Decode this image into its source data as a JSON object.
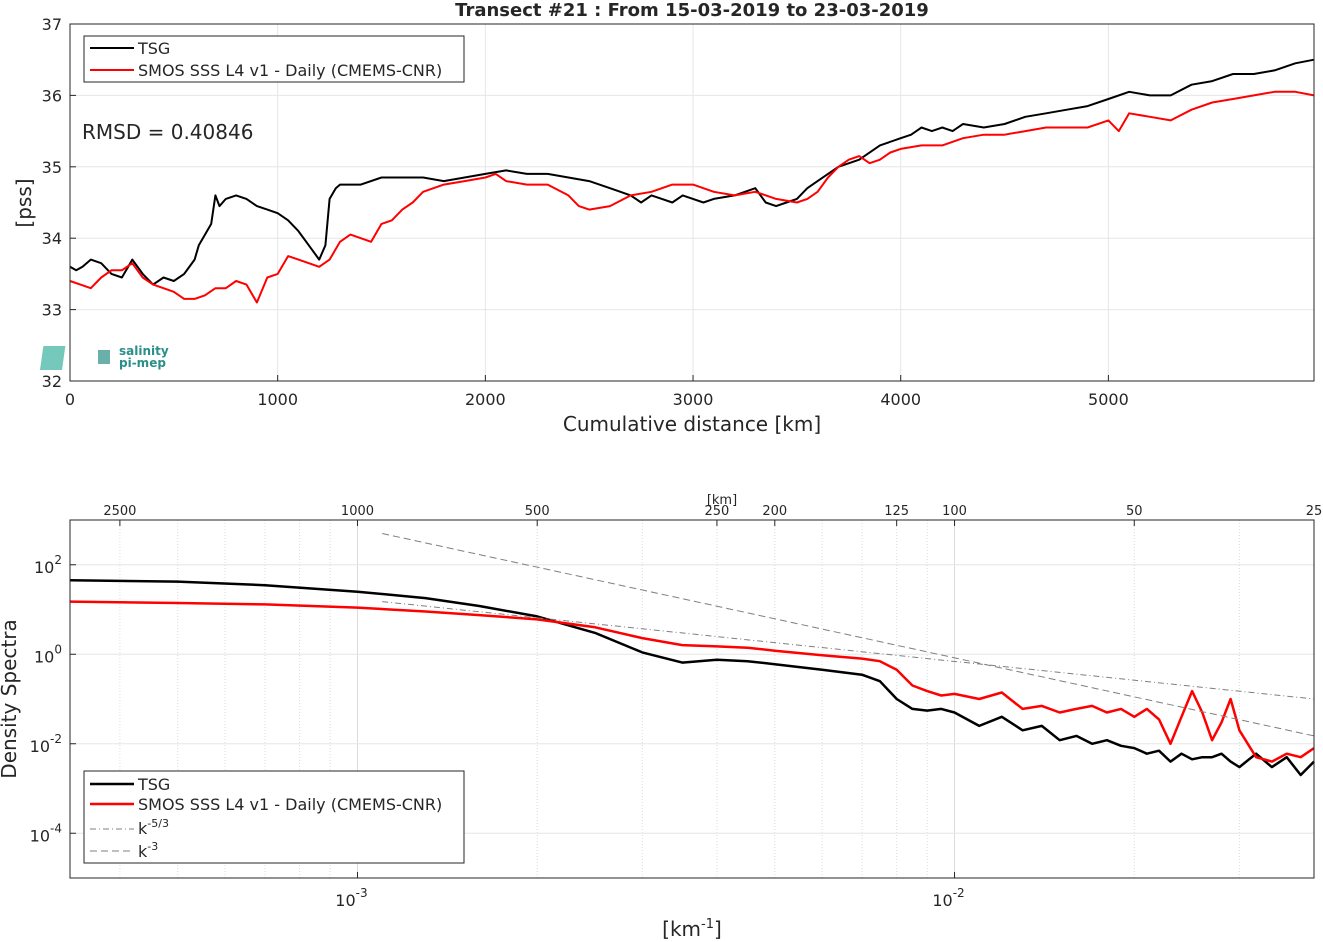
{
  "figure": {
    "title": "Transect #21 : From 15-03-2019 to 23-03-2019",
    "logo_text": [
      "salinity",
      "pi-mep"
    ]
  },
  "chart_data": [
    {
      "type": "line",
      "title": "Transect #21 : From 15-03-2019 to 23-03-2019",
      "xlabel": "Cumulative distance [km]",
      "ylabel": "[pss]",
      "xlim": [
        0,
        5990
      ],
      "ylim": [
        32,
        37
      ],
      "xticks": [
        0,
        1000,
        2000,
        3000,
        4000,
        5000
      ],
      "yticks": [
        32,
        33,
        34,
        35,
        36,
        37
      ],
      "grid": true,
      "legend_position": "top-left",
      "annotation": "RMSD = 0.40846",
      "series": [
        {
          "name": "TSG",
          "color": "#000000",
          "x": [
            0,
            30,
            60,
            100,
            150,
            200,
            250,
            300,
            350,
            400,
            450,
            500,
            550,
            600,
            620,
            650,
            680,
            700,
            720,
            750,
            800,
            850,
            900,
            950,
            1000,
            1050,
            1100,
            1150,
            1200,
            1230,
            1250,
            1280,
            1300,
            1400,
            1500,
            1600,
            1700,
            1800,
            1900,
            2000,
            2100,
            2200,
            2300,
            2400,
            2500,
            2600,
            2650,
            2700,
            2750,
            2800,
            2850,
            2900,
            2950,
            3000,
            3050,
            3100,
            3200,
            3300,
            3350,
            3400,
            3450,
            3500,
            3550,
            3600,
            3650,
            3700,
            3800,
            3900,
            4000,
            4050,
            4100,
            4150,
            4200,
            4250,
            4300,
            4400,
            4500,
            4600,
            4700,
            4800,
            4900,
            5000,
            5100,
            5200,
            5300,
            5400,
            5500,
            5600,
            5700,
            5800,
            5900,
            5990
          ],
          "y": [
            33.6,
            33.55,
            33.6,
            33.7,
            33.65,
            33.5,
            33.45,
            33.7,
            33.5,
            33.35,
            33.45,
            33.4,
            33.5,
            33.7,
            33.9,
            34.05,
            34.2,
            34.6,
            34.45,
            34.55,
            34.6,
            34.55,
            34.45,
            34.4,
            34.35,
            34.25,
            34.1,
            33.9,
            33.7,
            33.9,
            34.55,
            34.7,
            34.75,
            34.75,
            34.85,
            34.85,
            34.85,
            34.8,
            34.85,
            34.9,
            34.95,
            34.9,
            34.9,
            34.85,
            34.8,
            34.7,
            34.65,
            34.6,
            34.5,
            34.6,
            34.55,
            34.5,
            34.6,
            34.55,
            34.5,
            34.55,
            34.6,
            34.7,
            34.5,
            34.45,
            34.5,
            34.55,
            34.7,
            34.8,
            34.9,
            35.0,
            35.1,
            35.3,
            35.4,
            35.45,
            35.55,
            35.5,
            35.55,
            35.5,
            35.6,
            35.55,
            35.6,
            35.7,
            35.75,
            35.8,
            35.85,
            35.95,
            36.05,
            36.0,
            36.0,
            36.15,
            36.2,
            36.3,
            36.3,
            36.35,
            36.45,
            36.5
          ]
        },
        {
          "name": "SMOS SSS L4 v1 - Daily (CMEMS-CNR)",
          "color": "#ff0000",
          "x": [
            0,
            50,
            100,
            150,
            200,
            250,
            300,
            350,
            400,
            450,
            500,
            550,
            600,
            650,
            700,
            750,
            800,
            850,
            900,
            950,
            1000,
            1050,
            1100,
            1150,
            1200,
            1250,
            1300,
            1350,
            1400,
            1450,
            1500,
            1550,
            1600,
            1650,
            1700,
            1800,
            1900,
            2000,
            2050,
            2100,
            2200,
            2300,
            2400,
            2450,
            2500,
            2600,
            2700,
            2800,
            2900,
            3000,
            3050,
            3100,
            3200,
            3300,
            3400,
            3500,
            3550,
            3600,
            3650,
            3700,
            3750,
            3800,
            3850,
            3900,
            3950,
            4000,
            4100,
            4200,
            4300,
            4400,
            4500,
            4600,
            4700,
            4800,
            4900,
            5000,
            5050,
            5100,
            5200,
            5300,
            5400,
            5500,
            5600,
            5700,
            5800,
            5900,
            5990
          ],
          "y": [
            33.4,
            33.35,
            33.3,
            33.45,
            33.55,
            33.55,
            33.65,
            33.45,
            33.35,
            33.3,
            33.25,
            33.15,
            33.15,
            33.2,
            33.3,
            33.3,
            33.4,
            33.35,
            33.1,
            33.45,
            33.5,
            33.75,
            33.7,
            33.65,
            33.6,
            33.7,
            33.95,
            34.05,
            34.0,
            33.95,
            34.2,
            34.25,
            34.4,
            34.5,
            34.65,
            34.75,
            34.8,
            34.85,
            34.9,
            34.8,
            34.75,
            34.75,
            34.6,
            34.45,
            34.4,
            34.45,
            34.6,
            34.65,
            34.75,
            34.75,
            34.7,
            34.65,
            34.6,
            34.65,
            34.55,
            34.5,
            34.55,
            34.65,
            34.85,
            35.0,
            35.1,
            35.15,
            35.05,
            35.1,
            35.2,
            35.25,
            35.3,
            35.3,
            35.4,
            35.45,
            35.45,
            35.5,
            35.55,
            35.55,
            35.55,
            35.65,
            35.5,
            35.75,
            35.7,
            35.65,
            35.8,
            35.9,
            35.95,
            36.0,
            36.05,
            36.05,
            36.0
          ]
        }
      ]
    },
    {
      "type": "line",
      "xscale": "log",
      "yscale": "log",
      "xlabel": "[km-1]",
      "ylabel": "Density Spectra",
      "top_axis_label": "[km]",
      "top_ticks_km": [
        2500,
        1000,
        500,
        250,
        200,
        125,
        100,
        50,
        25
      ],
      "xlim": [
        0.00033,
        0.04
      ],
      "ylim": [
        1e-05,
        1000
      ],
      "xticks": [
        0.001,
        0.01
      ],
      "xtick_labels": [
        [
          "10",
          "-3"
        ],
        [
          "10",
          "-2"
        ]
      ],
      "yticks": [
        0.0001,
        0.01,
        1,
        100
      ],
      "ytick_labels": [
        [
          "10",
          "-4"
        ],
        [
          "10",
          "-2"
        ],
        [
          "10",
          "0"
        ],
        [
          "10",
          "2"
        ]
      ],
      "grid": true,
      "legend_position": "bottom-left",
      "series": [
        {
          "name": "TSG",
          "color": "#000000",
          "x": [
            0.00033,
            0.0005,
            0.0007,
            0.001,
            0.0013,
            0.0016,
            0.002,
            0.0025,
            0.003,
            0.0035,
            0.004,
            0.0045,
            0.005,
            0.006,
            0.007,
            0.0075,
            0.008,
            0.0085,
            0.009,
            0.0095,
            0.01,
            0.011,
            0.012,
            0.013,
            0.014,
            0.015,
            0.016,
            0.017,
            0.018,
            0.019,
            0.02,
            0.021,
            0.022,
            0.023,
            0.024,
            0.025,
            0.026,
            0.027,
            0.028,
            0.029,
            0.03,
            0.032,
            0.034,
            0.036,
            0.038,
            0.04
          ],
          "y": [
            45,
            42,
            35,
            25,
            18,
            12,
            7,
            3,
            1.1,
            0.65,
            0.75,
            0.7,
            0.6,
            0.45,
            0.35,
            0.25,
            0.1,
            0.06,
            0.055,
            0.06,
            0.05,
            0.025,
            0.04,
            0.02,
            0.025,
            0.012,
            0.015,
            0.01,
            0.012,
            0.009,
            0.008,
            0.006,
            0.007,
            0.004,
            0.006,
            0.0045,
            0.005,
            0.005,
            0.006,
            0.004,
            0.003,
            0.006,
            0.003,
            0.005,
            0.002,
            0.004
          ]
        },
        {
          "name": "SMOS SSS L4 v1 - Daily (CMEMS-CNR)",
          "color": "#ff0000",
          "x": [
            0.00033,
            0.0005,
            0.0007,
            0.001,
            0.0013,
            0.0016,
            0.002,
            0.0025,
            0.003,
            0.0035,
            0.004,
            0.0045,
            0.005,
            0.006,
            0.007,
            0.0075,
            0.008,
            0.0085,
            0.009,
            0.0095,
            0.01,
            0.011,
            0.012,
            0.013,
            0.014,
            0.015,
            0.016,
            0.017,
            0.018,
            0.019,
            0.02,
            0.021,
            0.022,
            0.023,
            0.024,
            0.025,
            0.026,
            0.027,
            0.028,
            0.029,
            0.03,
            0.032,
            0.034,
            0.036,
            0.038,
            0.04
          ],
          "y": [
            15,
            14,
            13,
            11,
            9,
            7.5,
            6,
            4,
            2.3,
            1.6,
            1.5,
            1.4,
            1.2,
            0.95,
            0.8,
            0.7,
            0.45,
            0.2,
            0.15,
            0.12,
            0.13,
            0.1,
            0.14,
            0.06,
            0.07,
            0.05,
            0.06,
            0.07,
            0.05,
            0.06,
            0.04,
            0.06,
            0.035,
            0.01,
            0.04,
            0.15,
            0.05,
            0.012,
            0.03,
            0.1,
            0.02,
            0.005,
            0.004,
            0.006,
            0.005,
            0.008
          ]
        },
        {
          "name": "k-5/3",
          "color": "#7f7f7f",
          "dash": "dashdot",
          "x": [
            0.0011,
            0.04
          ],
          "y": [
            15,
            0.1
          ]
        },
        {
          "name": "k-3",
          "color": "#7f7f7f",
          "dash": "dashed",
          "x": [
            0.0011,
            0.04
          ],
          "y": [
            500,
            0.015
          ]
        }
      ]
    }
  ]
}
